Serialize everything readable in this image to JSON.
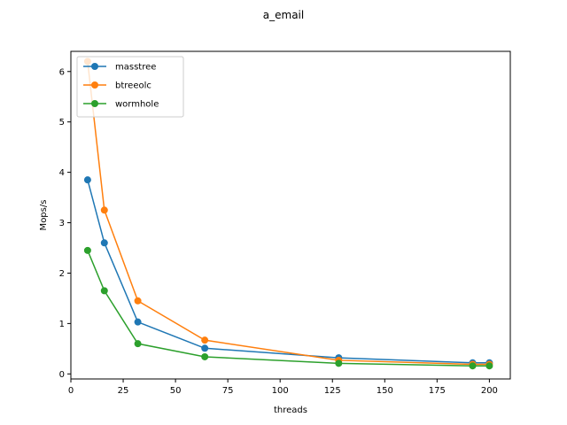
{
  "chart_data": {
    "type": "line",
    "title": "a_email",
    "xlabel": "threads",
    "ylabel": "Mops/s",
    "xlim": [
      0,
      210
    ],
    "ylim": [
      -0.1,
      6.4
    ],
    "xticks": [
      0,
      25,
      50,
      75,
      100,
      125,
      150,
      175,
      200
    ],
    "yticks": [
      0,
      1,
      2,
      3,
      4,
      5,
      6
    ],
    "grid": false,
    "legend_position": "top-left",
    "x": [
      8,
      16,
      32,
      64,
      128,
      192,
      200
    ],
    "series": [
      {
        "name": "masstree",
        "color": "#1f77b4",
        "values": [
          3.85,
          2.6,
          1.03,
          0.51,
          0.32,
          0.22,
          0.22
        ]
      },
      {
        "name": "btreeolc",
        "color": "#ff7f0e",
        "values": [
          6.2,
          3.25,
          1.45,
          0.67,
          0.27,
          0.19,
          0.19
        ]
      },
      {
        "name": "wormhole",
        "color": "#2ca02c",
        "values": [
          2.45,
          1.65,
          0.6,
          0.34,
          0.21,
          0.16,
          0.16
        ]
      }
    ]
  }
}
